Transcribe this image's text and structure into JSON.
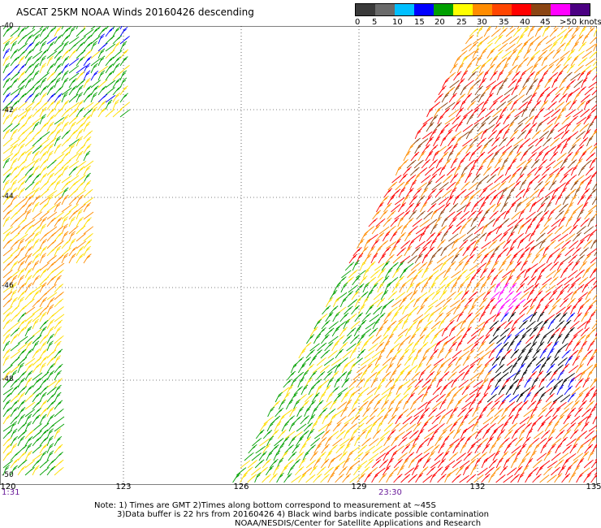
{
  "title": "ASCAT 25KM NOAA Winds 20160426 descending",
  "legend": {
    "labels": [
      "0",
      "5",
      "10",
      "15",
      "20",
      "25",
      "30",
      "35",
      "40",
      "45",
      ">50 knots"
    ],
    "colors": [
      "#3a3a3a",
      "#6a6a6a",
      "#00bfff",
      "#0000ff",
      "#00a000",
      "#ffff00",
      "#ff8c00",
      "#ff4500",
      "#ff0000",
      "#8b4513",
      "#ff00ff",
      "#4b0082"
    ]
  },
  "axes": {
    "latitudes": [
      "-40",
      "-42",
      "-44",
      "-46",
      "-48",
      "-50"
    ],
    "longitudes": [
      "120",
      "123",
      "126",
      "129",
      "132",
      "135"
    ]
  },
  "times": [
    "1:31",
    "23:30"
  ],
  "notes": {
    "line1": "Note: 1) Times are GMT 2)Times along bottom correspond to measurement at ~45S",
    "line2": "3)Data buffer is 22 hrs from 20160426 4) Black wind barbs indicate possible contamination",
    "line3": "NOAA/NESDIS/Center for Satellite Applications and Research"
  }
}
